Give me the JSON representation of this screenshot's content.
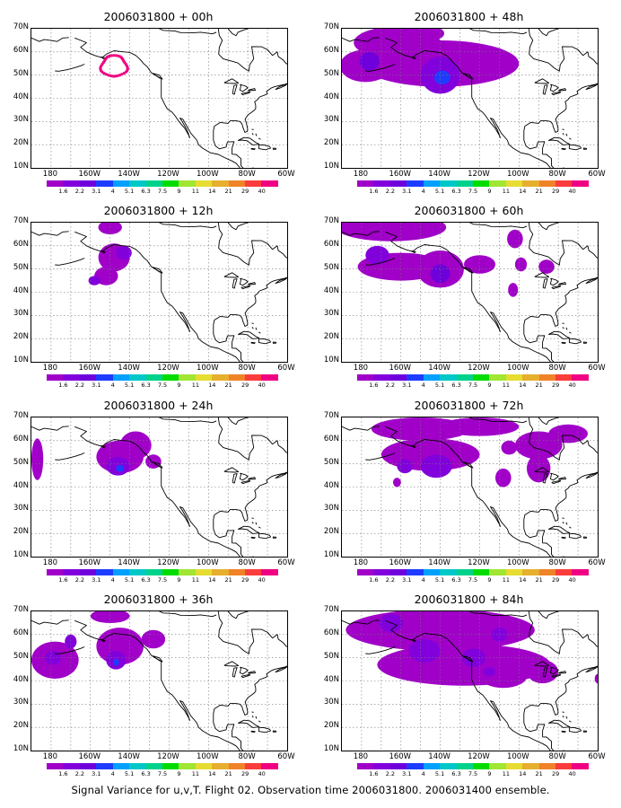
{
  "caption": "Signal Variance for u,v,T. Flight 02. Observation time 2006031800. 2006031400 ensemble.",
  "lat_labels": [
    "70N",
    "60N",
    "50N",
    "40N",
    "30N",
    "20N",
    "10N"
  ],
  "lon_labels": [
    "180",
    "160W",
    "140W",
    "120W",
    "100W",
    "80W",
    "60W"
  ],
  "colorbar": {
    "levels": [
      "1.6",
      "2.2",
      "3.1",
      "4",
      "5.1",
      "6.3",
      "7.5",
      "9",
      "11",
      "14",
      "21",
      "29",
      "40"
    ],
    "colors": [
      "#a000c8",
      "#8200dc",
      "#6e00dc",
      "#1e3cff",
      "#00a0ff",
      "#00c8c8",
      "#00d28c",
      "#00dc00",
      "#a0e632",
      "#e6dc32",
      "#e6af2d",
      "#f08228",
      "#fa3c3c",
      "#f00082"
    ]
  },
  "panels": [
    {
      "title": "2006031800 + 00h"
    },
    {
      "title": "2006031800 + 48h"
    },
    {
      "title": "2006031800 + 12h"
    },
    {
      "title": "2006031800 + 60h"
    },
    {
      "title": "2006031800 + 24h"
    },
    {
      "title": "2006031800 + 72h"
    },
    {
      "title": "2006031800 + 36h"
    },
    {
      "title": "2006031800 + 84h"
    }
  ]
}
